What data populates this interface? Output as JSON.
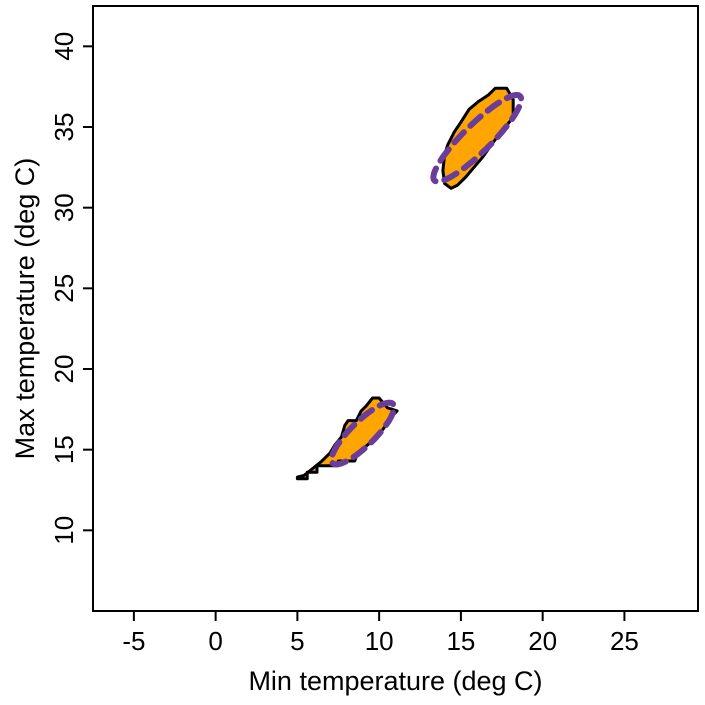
{
  "chart_data": {
    "type": "area",
    "title": "",
    "xlabel": "Min temperature (deg C)",
    "ylabel": "Max temperature (deg C)",
    "xlim": [
      -7.5,
      29.5
    ],
    "ylim": [
      5,
      42.5
    ],
    "xticks": [
      -5,
      0,
      5,
      10,
      15,
      20,
      25
    ],
    "yticks": [
      10,
      15,
      20,
      25,
      30,
      35,
      40
    ],
    "grid": false,
    "legend": "none",
    "colors": {
      "fill": "#FFA500",
      "outline": "#000000",
      "ellipse": "#6A3D9A"
    },
    "regions": [
      {
        "polygon": [
          [
            5.0,
            13.2
          ],
          [
            5.6,
            13.2
          ],
          [
            5.6,
            13.6
          ],
          [
            6.2,
            13.6
          ],
          [
            6.2,
            14.0
          ],
          [
            7.5,
            14.0
          ],
          [
            7.5,
            14.3
          ],
          [
            8.5,
            14.3
          ],
          [
            8.7,
            14.8
          ],
          [
            9.3,
            15.3
          ],
          [
            9.9,
            15.8
          ],
          [
            10.4,
            16.5
          ],
          [
            10.9,
            17.2
          ],
          [
            11.1,
            17.4
          ],
          [
            10.5,
            17.6
          ],
          [
            10.0,
            18.2
          ],
          [
            9.6,
            18.2
          ],
          [
            9.2,
            17.7
          ],
          [
            8.9,
            17.4
          ],
          [
            8.6,
            16.8
          ],
          [
            8.1,
            16.8
          ],
          [
            7.9,
            16.5
          ],
          [
            7.7,
            15.8
          ],
          [
            7.3,
            15.3
          ],
          [
            7.0,
            14.8
          ],
          [
            6.5,
            14.3
          ],
          [
            5.9,
            13.8
          ],
          [
            5.4,
            13.4
          ],
          [
            5.0,
            13.3
          ]
        ],
        "ellipse": {
          "cx": 9.0,
          "cy": 16.0,
          "a": 2.6,
          "b": 0.75,
          "angle_deg": 45
        }
      },
      {
        "polygon": [
          [
            14.0,
            31.5
          ],
          [
            14.4,
            31.2
          ],
          [
            14.8,
            31.4
          ],
          [
            15.3,
            31.9
          ],
          [
            15.8,
            32.5
          ],
          [
            16.3,
            33.1
          ],
          [
            16.8,
            33.8
          ],
          [
            17.3,
            34.5
          ],
          [
            17.8,
            35.1
          ],
          [
            18.2,
            35.6
          ],
          [
            18.2,
            36.7
          ],
          [
            17.8,
            37.4
          ],
          [
            17.1,
            37.4
          ],
          [
            16.7,
            37.0
          ],
          [
            16.1,
            36.6
          ],
          [
            15.5,
            36.1
          ],
          [
            15.0,
            35.3
          ],
          [
            14.6,
            34.7
          ],
          [
            14.2,
            33.9
          ],
          [
            14.0,
            33.3
          ],
          [
            13.9,
            32.3
          ]
        ],
        "ellipse": {
          "cx": 16.0,
          "cy": 34.3,
          "a": 3.7,
          "b": 0.85,
          "angle_deg": 45
        }
      }
    ]
  }
}
